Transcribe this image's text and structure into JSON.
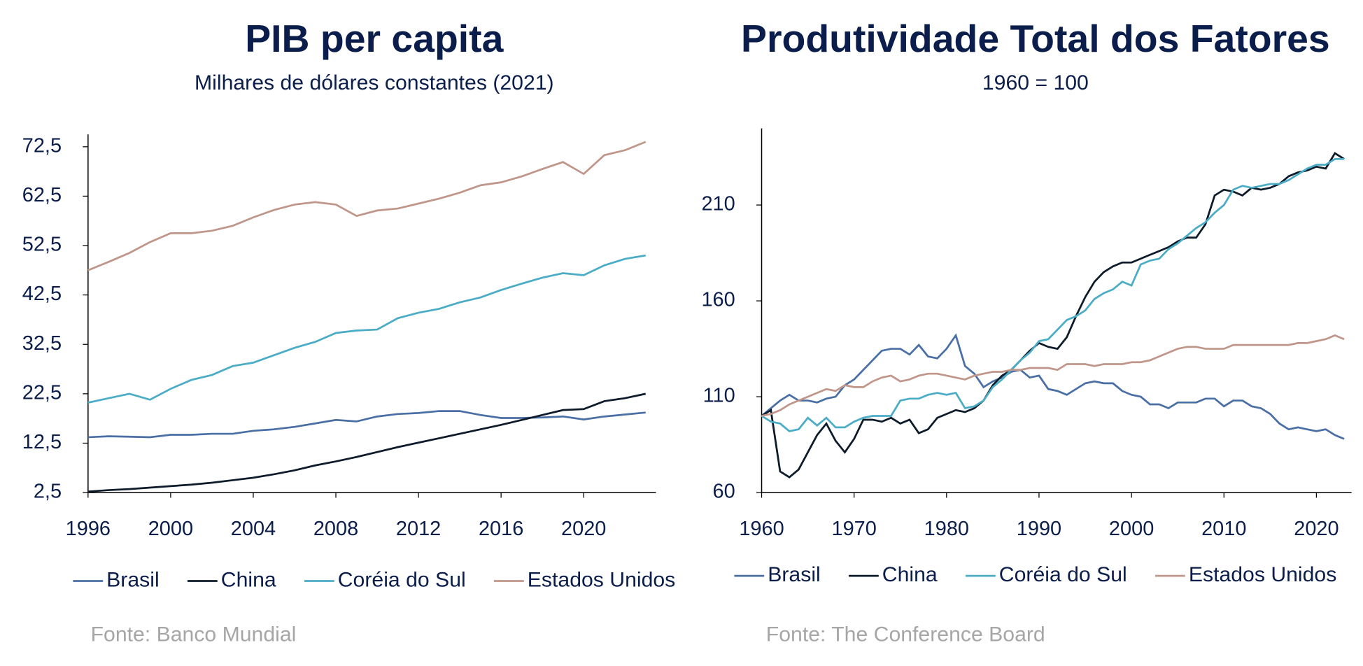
{
  "chart_data": [
    {
      "type": "line",
      "title": "PIB per capita",
      "subtitle": "Milhares de dólares constantes (2021)",
      "source": "Fonte: Banco Mundial",
      "x": [
        1996,
        1997,
        1998,
        1999,
        2000,
        2001,
        2002,
        2003,
        2004,
        2005,
        2006,
        2007,
        2008,
        2009,
        2010,
        2011,
        2012,
        2013,
        2014,
        2015,
        2016,
        2017,
        2018,
        2019,
        2020,
        2021,
        2022,
        2023
      ],
      "xlim": [
        1996,
        2023.5
      ],
      "xticks": [
        1996,
        2000,
        2004,
        2008,
        2012,
        2016,
        2020
      ],
      "ylim": [
        2.5,
        75
      ],
      "yticks": [
        {
          "value": 2.5,
          "label": "2,5"
        },
        {
          "value": 12.5,
          "label": "12,5"
        },
        {
          "value": 22.5,
          "label": "22,5"
        },
        {
          "value": 32.5,
          "label": "32,5"
        },
        {
          "value": 42.5,
          "label": "42,5"
        },
        {
          "value": 52.5,
          "label": "52,5"
        },
        {
          "value": 62.5,
          "label": "62,5"
        },
        {
          "value": 72.5,
          "label": "72,5"
        }
      ],
      "series": [
        {
          "name": "Brasil",
          "color": "#4a6fa5",
          "values": [
            13.7,
            13.9,
            13.8,
            13.7,
            14.2,
            14.2,
            14.4,
            14.4,
            15.0,
            15.3,
            15.8,
            16.5,
            17.2,
            16.9,
            17.9,
            18.4,
            18.6,
            19.0,
            19.0,
            18.2,
            17.6,
            17.6,
            17.7,
            17.9,
            17.3,
            17.9,
            18.3,
            18.7
          ]
        },
        {
          "name": "China",
          "color": "#0d1b2a",
          "values": [
            2.7,
            3.0,
            3.2,
            3.5,
            3.8,
            4.1,
            4.5,
            5.0,
            5.5,
            6.2,
            7.0,
            8.0,
            8.8,
            9.7,
            10.7,
            11.7,
            12.6,
            13.5,
            14.4,
            15.3,
            16.2,
            17.2,
            18.2,
            19.2,
            19.4,
            21.0,
            21.6,
            22.5
          ]
        },
        {
          "name": "Coréia do Sul",
          "color": "#4bacc6",
          "values": [
            20.7,
            21.6,
            22.5,
            21.3,
            23.5,
            25.3,
            26.3,
            28.1,
            28.8,
            30.3,
            31.8,
            33.0,
            34.8,
            35.3,
            35.5,
            37.8,
            38.9,
            39.7,
            41.0,
            42.0,
            43.5,
            44.8,
            46.0,
            46.9,
            46.5,
            48.5,
            49.8,
            50.5
          ]
        },
        {
          "name": "Estados Unidos",
          "color": "#c0968a",
          "values": [
            47.5,
            49.2,
            51.0,
            53.2,
            55.0,
            55.0,
            55.5,
            56.5,
            58.2,
            59.7,
            60.8,
            61.3,
            60.8,
            58.5,
            59.6,
            60.0,
            61.0,
            62.0,
            63.2,
            64.7,
            65.3,
            66.5,
            68.0,
            69.4,
            67.0,
            70.8,
            71.8,
            73.5
          ]
        }
      ]
    },
    {
      "type": "line",
      "title": "Produtividade Total dos Fatores",
      "subtitle": "1960 = 100",
      "source": "Fonte: The Conference Board",
      "x": [
        1960,
        1961,
        1962,
        1963,
        1964,
        1965,
        1966,
        1967,
        1968,
        1969,
        1970,
        1971,
        1972,
        1973,
        1974,
        1975,
        1976,
        1977,
        1978,
        1979,
        1980,
        1981,
        1982,
        1983,
        1984,
        1985,
        1986,
        1987,
        1988,
        1989,
        1990,
        1991,
        1992,
        1993,
        1994,
        1995,
        1996,
        1997,
        1998,
        1999,
        2000,
        2001,
        2002,
        2003,
        2004,
        2005,
        2006,
        2007,
        2008,
        2009,
        2010,
        2011,
        2012,
        2013,
        2014,
        2015,
        2016,
        2017,
        2018,
        2019,
        2020,
        2021,
        2022,
        2023
      ],
      "xlim": [
        1960,
        2023.8
      ],
      "xticks": [
        1960,
        1970,
        1980,
        1990,
        2000,
        2010,
        2020
      ],
      "ylim": [
        60,
        250
      ],
      "yticks": [
        60,
        110,
        160,
        210
      ],
      "series": [
        {
          "name": "Brasil",
          "color": "#4a6fa5",
          "values": [
            100,
            104,
            108,
            111,
            108,
            108,
            107,
            109,
            110,
            116,
            119,
            124,
            129,
            134,
            135,
            135,
            132,
            137,
            131,
            130,
            135,
            142,
            126,
            122,
            115,
            118,
            120,
            123,
            124,
            120,
            121,
            114,
            113,
            111,
            114,
            117,
            118,
            117,
            117,
            113,
            111,
            110,
            106,
            106,
            104,
            107,
            107,
            107,
            109,
            109,
            105,
            108,
            108,
            105,
            104,
            101,
            96,
            93,
            94,
            93,
            92,
            93,
            90,
            88
          ]
        },
        {
          "name": "China",
          "color": "#0d1b2a",
          "values": [
            100,
            103,
            71,
            68,
            72,
            81,
            90,
            96,
            87,
            81,
            88,
            98,
            98,
            97,
            99,
            96,
            98,
            91,
            93,
            99,
            101,
            103,
            102,
            104,
            108,
            116,
            121,
            124,
            129,
            134,
            138,
            136,
            135,
            141,
            152,
            162,
            170,
            175,
            178,
            180,
            180,
            182,
            184,
            186,
            188,
            191,
            193,
            193,
            200,
            215,
            218,
            217,
            215,
            219,
            218,
            219,
            221,
            225,
            227,
            228,
            230,
            229,
            237,
            234
          ]
        },
        {
          "name": "Coréia do Sul",
          "color": "#4bacc6",
          "values": [
            100,
            97,
            96,
            92,
            93,
            99,
            95,
            99,
            94,
            94,
            97,
            99,
            100,
            100,
            100,
            108,
            109,
            109,
            111,
            112,
            111,
            112,
            104,
            105,
            108,
            115,
            119,
            124,
            129,
            133,
            139,
            140,
            145,
            150,
            152,
            155,
            161,
            164,
            166,
            170,
            168,
            179,
            181,
            182,
            187,
            190,
            194,
            198,
            201,
            206,
            210,
            218,
            220,
            219,
            220,
            221,
            221,
            223,
            226,
            229,
            231,
            231,
            234,
            234
          ]
        },
        {
          "name": "Estados Unidos",
          "color": "#c0968a",
          "values": [
            100,
            101,
            103,
            106,
            108,
            110,
            112,
            114,
            113,
            116,
            115,
            115,
            118,
            120,
            121,
            118,
            119,
            121,
            122,
            122,
            121,
            120,
            119,
            121,
            122,
            123,
            123,
            124,
            124,
            125,
            125,
            125,
            124,
            127,
            127,
            127,
            126,
            127,
            127,
            127,
            128,
            128,
            129,
            131,
            133,
            135,
            136,
            136,
            135,
            135,
            135,
            137,
            137,
            137,
            137,
            137,
            137,
            137,
            138,
            138,
            139,
            140,
            142,
            140
          ]
        }
      ]
    }
  ]
}
